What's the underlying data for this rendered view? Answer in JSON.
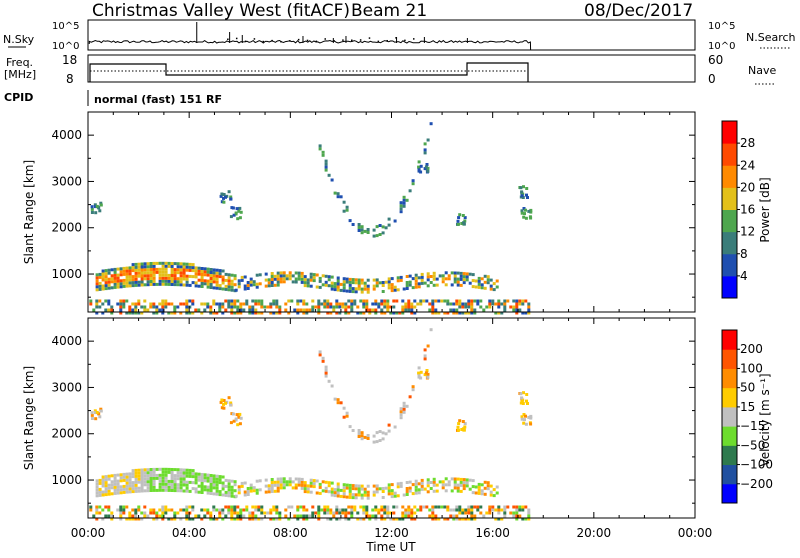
{
  "header": {
    "station": "Christmas Valley West (fitACF)",
    "beam": "Beam 21",
    "date": "08/Dec/2017"
  },
  "noise_panel": {
    "left_label": "N.Sky",
    "right_label": "N.Search",
    "ticks": [
      "10^5",
      "10^0"
    ]
  },
  "freq_panel": {
    "left_label_1": "Freq.",
    "left_label_2": "[MHz]",
    "left_ticks": [
      "18",
      "8"
    ],
    "right_ticks": [
      "60",
      "0"
    ],
    "right_label": "Nave"
  },
  "cpid": {
    "label": "CPID",
    "program": "normal (fast) 151 RF"
  },
  "chart_data": [
    {
      "type": "heatmap",
      "parameter": "Power",
      "ylabel": "Slant Range [km]",
      "xlabel": "",
      "x_range_hours": [
        0,
        24
      ],
      "y_range_km": [
        180,
        4500
      ],
      "y_ticks": [
        "4000",
        "3000",
        "2000",
        "1000"
      ],
      "colorbar_label": "Power [dB]",
      "colorbar_ticks": [
        "28",
        "24",
        "20",
        "16",
        "12",
        "8",
        "4"
      ],
      "colorbar_colors": [
        "#0000ff",
        "#1f4fb0",
        "#3a7d7a",
        "#4ea64e",
        "#e3c01a",
        "#ff8a00",
        "#ff4a00",
        "#ff0000"
      ]
    },
    {
      "type": "heatmap",
      "parameter": "Velocity",
      "ylabel": "Slant Range [km]",
      "xlabel": "Time UT",
      "x_range_hours": [
        0,
        24
      ],
      "y_range_km": [
        180,
        4500
      ],
      "y_ticks": [
        "4000",
        "3000",
        "2000",
        "1000"
      ],
      "x_ticks": [
        "00:00",
        "04:00",
        "08:00",
        "12:00",
        "16:00",
        "20:00",
        "00:00"
      ],
      "colorbar_label": "Velocity [m s⁻¹]",
      "colorbar_ticks": [
        "200",
        "100",
        "50",
        "15",
        "−15",
        "−50",
        "−100",
        "−200"
      ],
      "colorbar_colors": [
        "#0000ff",
        "#2050a0",
        "#2e7a4e",
        "#6ddc2e",
        "#c0c0c0",
        "#ffcc00",
        "#ff8c00",
        "#ff5500",
        "#ff0000"
      ]
    }
  ]
}
